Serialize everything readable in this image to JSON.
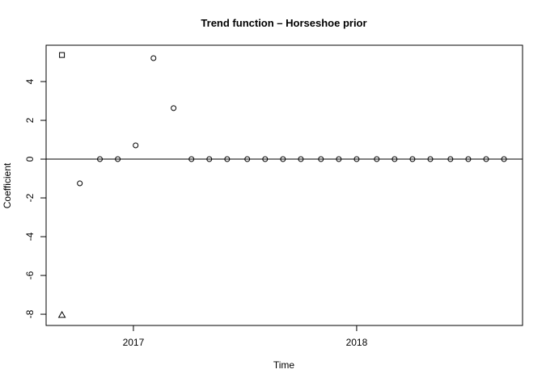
{
  "chart_data": {
    "type": "scatter",
    "title": "Trend function – Horseshoe prior",
    "x_label": "Time",
    "y_label": "Coefficient",
    "xlim": [
      2016.609,
      2018.743
    ],
    "xticks": [
      2017,
      2018
    ],
    "ylim": [
      -8.58,
      5.875
    ],
    "yticks": [
      -8,
      -6,
      -4,
      -2,
      0,
      2,
      4
    ],
    "hline": 0,
    "color": "#000000",
    "series": [
      {
        "shape": "circle",
        "x": [
          2016.76,
          2016.85,
          2016.93,
          2017.01,
          2017.09,
          2017.18,
          2017.26,
          2017.34,
          2017.42,
          2017.51,
          2017.59,
          2017.67,
          2017.75,
          2017.84,
          2017.92,
          2018.0,
          2018.09,
          2018.17,
          2018.25,
          2018.33,
          2018.42,
          2018.5,
          2018.58,
          2018.66
        ],
        "values": [
          -1.25,
          0,
          0,
          0.71,
          5.21,
          2.63,
          0,
          0,
          0,
          0,
          0,
          0,
          0,
          0,
          0,
          0,
          0,
          0,
          0,
          0,
          0,
          0,
          0,
          0
        ]
      },
      {
        "shape": "square",
        "x": [
          2016.68
        ],
        "values": [
          5.37
        ]
      },
      {
        "shape": "triangle",
        "x": [
          2016.68
        ],
        "values": [
          -8.04
        ]
      }
    ]
  }
}
